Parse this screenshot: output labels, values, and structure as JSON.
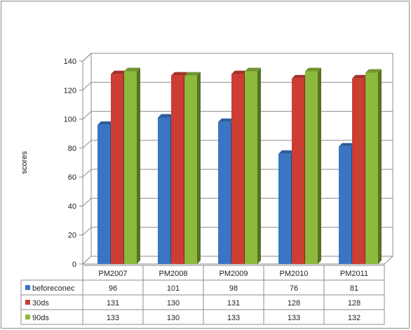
{
  "chart_data": {
    "type": "bar",
    "title": "",
    "xlabel": "",
    "ylabel": "scores",
    "categories": [
      "PM2007",
      "PM2008",
      "PM2009",
      "PM2010",
      "PM2011"
    ],
    "series": [
      {
        "name": "beforeconec",
        "values": [
          96,
          101,
          98,
          76,
          81
        ],
        "color": "#3a75c4"
      },
      {
        "name": "30ds",
        "values": [
          131,
          130,
          131,
          128,
          128
        ],
        "color": "#cc3d34"
      },
      {
        "name": "90ds",
        "values": [
          133,
          130,
          133,
          133,
          132
        ],
        "color": "#8cba3c"
      }
    ],
    "ylim": [
      0,
      140
    ],
    "yticks": [
      0,
      20,
      40,
      60,
      80,
      100,
      120,
      140
    ],
    "grid": true,
    "legend": "data-table"
  }
}
